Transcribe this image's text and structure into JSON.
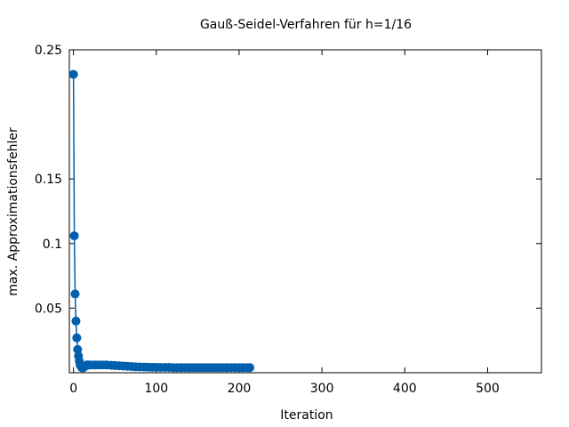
{
  "chart_data": {
    "type": "line",
    "title": "Gauß-Seidel-Verfahren für h=1/16",
    "xlabel": "Iteration",
    "ylabel": "max. Approximationsfehler",
    "xlim": [
      -5,
      565
    ],
    "ylim": [
      0,
      0.25
    ],
    "xticks": [
      0,
      100,
      200,
      300,
      400,
      500
    ],
    "xtick_labels": [
      "0",
      "100",
      "200",
      "300",
      "400",
      "500"
    ],
    "yticks": [
      0.05,
      0.1,
      0.15,
      0.25
    ],
    "ytick_labels": [
      "0.05",
      "0.1",
      "0.15",
      "0.25"
    ],
    "grid": false,
    "series_color": "#0060ad",
    "series": [
      {
        "points": [
          [
            0,
            0.231
          ],
          [
            1,
            0.106
          ],
          [
            2,
            0.061
          ],
          [
            3,
            0.04
          ],
          [
            4,
            0.027
          ],
          [
            5,
            0.018
          ],
          [
            6,
            0.013
          ],
          [
            7,
            0.009
          ],
          [
            8,
            0.006
          ],
          [
            9,
            0.005
          ],
          [
            10,
            0.004
          ],
          [
            12,
            0.004
          ],
          [
            14,
            0.005
          ],
          [
            16,
            0.006
          ],
          [
            18,
            0.006
          ],
          [
            20,
            0.006
          ],
          [
            25,
            0.006
          ],
          [
            30,
            0.006
          ],
          [
            35,
            0.006
          ],
          [
            40,
            0.006
          ],
          [
            45,
            0.0058
          ],
          [
            50,
            0.0056
          ],
          [
            55,
            0.0054
          ],
          [
            60,
            0.0052
          ],
          [
            65,
            0.005
          ],
          [
            70,
            0.0048
          ],
          [
            75,
            0.0046
          ],
          [
            80,
            0.0045
          ],
          [
            85,
            0.0044
          ],
          [
            90,
            0.0043
          ],
          [
            95,
            0.0042
          ],
          [
            100,
            0.0042
          ],
          [
            105,
            0.0041
          ],
          [
            110,
            0.0041
          ],
          [
            115,
            0.0041
          ],
          [
            120,
            0.004
          ],
          [
            125,
            0.004
          ],
          [
            130,
            0.004
          ],
          [
            135,
            0.004
          ],
          [
            140,
            0.004
          ],
          [
            145,
            0.004
          ],
          [
            150,
            0.004
          ],
          [
            155,
            0.004
          ],
          [
            160,
            0.004
          ],
          [
            165,
            0.004
          ],
          [
            170,
            0.004
          ],
          [
            175,
            0.004
          ],
          [
            180,
            0.004
          ],
          [
            185,
            0.004
          ],
          [
            190,
            0.004
          ],
          [
            195,
            0.004
          ],
          [
            200,
            0.004
          ],
          [
            205,
            0.004
          ],
          [
            210,
            0.004
          ],
          [
            213,
            0.004
          ]
        ]
      }
    ]
  }
}
